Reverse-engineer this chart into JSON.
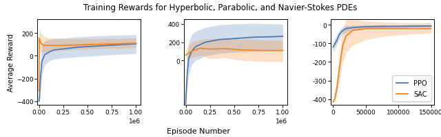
{
  "title": "Training Rewards for Hyperbolic, Parabolic, and Navier-Stokes PDEs",
  "xlabel": "Episode Number",
  "ylabel": "Average Reward",
  "ppo_color": "#4C78B5",
  "sac_color": "#F28522",
  "ppo_alpha": 0.25,
  "sac_alpha": 0.25,
  "subplot1": {
    "xlim": [
      -15000,
      1050000
    ],
    "ylim": [
      -430,
      320
    ],
    "yticks": [
      -400,
      -200,
      0,
      200
    ],
    "ppo_x": [
      0,
      5000,
      15000,
      30000,
      60000,
      100000,
      150000,
      250000,
      400000,
      600000,
      800000,
      1000000
    ],
    "ppo_y": [
      -400,
      -370,
      -200,
      -50,
      10,
      30,
      50,
      60,
      75,
      85,
      95,
      105
    ],
    "ppo_y_low": [
      -415,
      -395,
      -320,
      -170,
      -80,
      -50,
      -30,
      -20,
      -10,
      0,
      10,
      20
    ],
    "ppo_y_high": [
      -380,
      -330,
      -80,
      80,
      130,
      140,
      150,
      155,
      165,
      175,
      180,
      185
    ],
    "sac_x": [
      0,
      3000,
      8000,
      20000,
      50000,
      100000,
      200000,
      400000,
      600000,
      800000,
      1000000
    ],
    "sac_y": [
      -310,
      155,
      140,
      110,
      90,
      90,
      90,
      95,
      100,
      105,
      110
    ],
    "sac_y_low": [
      -315,
      80,
      40,
      30,
      30,
      40,
      45,
      55,
      60,
      65,
      70
    ],
    "sac_y_high": [
      -300,
      240,
      230,
      200,
      170,
      155,
      150,
      148,
      150,
      152,
      155
    ]
  },
  "subplot2": {
    "xlim": [
      -15000,
      1050000
    ],
    "ylim": [
      -480,
      450
    ],
    "yticks": [
      0,
      200,
      400
    ],
    "ppo_x": [
      0,
      5000,
      15000,
      30000,
      60000,
      100000,
      200000,
      350000,
      500000,
      700000,
      900000,
      1000000
    ],
    "ppo_y": [
      -470,
      -350,
      -150,
      20,
      100,
      150,
      200,
      230,
      240,
      255,
      260,
      265
    ],
    "ppo_y_low": [
      -475,
      -420,
      -300,
      -150,
      -50,
      0,
      50,
      80,
      90,
      100,
      110,
      115
    ],
    "ppo_y_high": [
      -460,
      -260,
      50,
      200,
      280,
      320,
      360,
      390,
      400,
      405,
      400,
      395
    ],
    "sac_x": [
      0,
      5000,
      15000,
      40000,
      80000,
      150000,
      250000,
      400000,
      600000,
      800000,
      1000000
    ],
    "sac_y": [
      60,
      65,
      70,
      90,
      110,
      135,
      125,
      130,
      115,
      110,
      110
    ],
    "sac_y_low": [
      30,
      20,
      10,
      20,
      40,
      60,
      20,
      30,
      0,
      -10,
      -10
    ],
    "sac_y_high": [
      100,
      120,
      140,
      180,
      210,
      230,
      240,
      240,
      235,
      225,
      220
    ]
  },
  "subplot3": {
    "xlim": [
      -3000,
      155000
    ],
    "ylim": [
      -430,
      30
    ],
    "yticks": [
      -400,
      -300,
      -200,
      -100,
      0
    ],
    "ppo_x": [
      0,
      5000,
      10000,
      15000,
      20000,
      30000,
      50000,
      80000,
      120000,
      150000
    ],
    "ppo_y": [
      -120,
      -90,
      -50,
      -30,
      -20,
      -15,
      -10,
      -8,
      -7,
      -6
    ],
    "ppo_y_low": [
      -145,
      -115,
      -75,
      -50,
      -40,
      -30,
      -22,
      -18,
      -14,
      -12
    ],
    "ppo_y_high": [
      -95,
      -60,
      -25,
      -10,
      -5,
      -2,
      -1,
      0,
      0,
      0
    ],
    "sac_x": [
      0,
      1000,
      3000,
      6000,
      10000,
      15000,
      20000,
      30000,
      50000,
      80000,
      120000,
      150000
    ],
    "sac_y": [
      -415,
      -410,
      -395,
      -340,
      -230,
      -110,
      -60,
      -30,
      -20,
      -20,
      -20,
      -20
    ],
    "sac_y_low": [
      -420,
      -415,
      -410,
      -375,
      -300,
      -200,
      -150,
      -110,
      -80,
      -60,
      -50,
      -45
    ],
    "sac_y_high": [
      -405,
      -400,
      -370,
      -290,
      -140,
      -30,
      30,
      30,
      20,
      15,
      10,
      10
    ]
  }
}
